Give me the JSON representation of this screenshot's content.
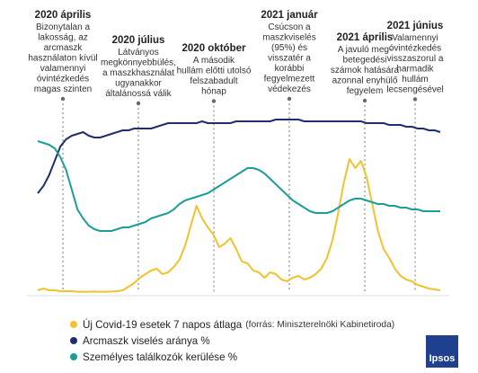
{
  "chart_data": {
    "type": "line",
    "x_range": [
      "2020-03",
      "2021-07"
    ],
    "series": [
      {
        "name": "Új Covid-19 esetek 7 napos átlaga",
        "color": "#f2c12e",
        "values": [
          0.02,
          0.03,
          0.02,
          0.02,
          0.015,
          0.015,
          0.015,
          0.012,
          0.012,
          0.012,
          0.013,
          0.012,
          0.012,
          0.013,
          0.015,
          0.02,
          0.04,
          0.06,
          0.09,
          0.11,
          0.13,
          0.14,
          0.11,
          0.12,
          0.15,
          0.19,
          0.27,
          0.38,
          0.49,
          0.42,
          0.37,
          0.33,
          0.26,
          0.28,
          0.31,
          0.25,
          0.18,
          0.17,
          0.13,
          0.12,
          0.09,
          0.12,
          0.11,
          0.08,
          0.07,
          0.09,
          0.1,
          0.08,
          0.09,
          0.11,
          0.14,
          0.2,
          0.3,
          0.45,
          0.62,
          0.75,
          0.7,
          0.74,
          0.65,
          0.5,
          0.35,
          0.25,
          0.2,
          0.14,
          0.1,
          0.08,
          0.07,
          0.05,
          0.04,
          0.03,
          0.025,
          0.02
        ]
      },
      {
        "name": "Arcmaszk viselés aránya %",
        "color": "#1f2f6e",
        "values": [
          0.56,
          0.6,
          0.66,
          0.74,
          0.82,
          0.86,
          0.88,
          0.89,
          0.9,
          0.88,
          0.87,
          0.87,
          0.88,
          0.89,
          0.9,
          0.91,
          0.91,
          0.92,
          0.92,
          0.92,
          0.92,
          0.93,
          0.94,
          0.95,
          0.95,
          0.95,
          0.95,
          0.95,
          0.95,
          0.96,
          0.95,
          0.95,
          0.95,
          0.95,
          0.95,
          0.96,
          0.96,
          0.96,
          0.96,
          0.96,
          0.96,
          0.96,
          0.97,
          0.97,
          0.97,
          0.97,
          0.97,
          0.96,
          0.96,
          0.96,
          0.96,
          0.96,
          0.96,
          0.96,
          0.96,
          0.96,
          0.96,
          0.96,
          0.95,
          0.95,
          0.95,
          0.95,
          0.94,
          0.94,
          0.94,
          0.93,
          0.93,
          0.92,
          0.92,
          0.91,
          0.91,
          0.9
        ]
      },
      {
        "name": "Személyes találkozók kerülése %",
        "color": "#1a9e96",
        "values": [
          0.85,
          0.84,
          0.83,
          0.81,
          0.76,
          0.69,
          0.58,
          0.47,
          0.42,
          0.38,
          0.36,
          0.35,
          0.35,
          0.35,
          0.36,
          0.37,
          0.37,
          0.38,
          0.39,
          0.4,
          0.42,
          0.43,
          0.44,
          0.45,
          0.47,
          0.5,
          0.52,
          0.53,
          0.54,
          0.55,
          0.56,
          0.58,
          0.6,
          0.62,
          0.64,
          0.66,
          0.68,
          0.7,
          0.7,
          0.69,
          0.67,
          0.64,
          0.61,
          0.58,
          0.55,
          0.52,
          0.5,
          0.48,
          0.46,
          0.45,
          0.45,
          0.45,
          0.46,
          0.48,
          0.5,
          0.52,
          0.53,
          0.53,
          0.52,
          0.51,
          0.5,
          0.5,
          0.49,
          0.49,
          0.48,
          0.48,
          0.47,
          0.47,
          0.46,
          0.46,
          0.46,
          0.46
        ]
      }
    ],
    "annotations": [
      {
        "date": "2020-04",
        "title": "2020 április",
        "lines": [
          "Bizonytalan a",
          "lakosság, az",
          "arcmaszk",
          "használaton kívül",
          "valamennyi",
          "óvintézkedés",
          "magas szinten"
        ]
      },
      {
        "date": "2020-07",
        "title": "2020 július",
        "lines": [
          "Látványos",
          "megkönnyebbülés,",
          "a maszkhasználat",
          "ugyanakkor",
          "általánossá válik"
        ]
      },
      {
        "date": "2020-10",
        "title": "2020 október",
        "lines": [
          "A második",
          "hullám előtti utolsó",
          "felszabadult",
          "hónap"
        ]
      },
      {
        "date": "2021-01",
        "title": "2021 január",
        "lines": [
          "Csúcson a",
          "maszkviselés",
          "(95%) és",
          "visszatér a",
          "korábbi",
          "fegyelmezett",
          "védekezés"
        ]
      },
      {
        "date": "2021-04",
        "title": "2021 április",
        "lines": [
          "A javuló meg-",
          "betegedési",
          "számok hatására",
          "azonnal enyhülő",
          "fegyelem"
        ]
      },
      {
        "date": "2021-06",
        "title": "2021 június",
        "lines": [
          "Valamennyi",
          "óvintézkedés",
          "visszaszorul a",
          "harmadik",
          "hullám",
          "lecsengésével"
        ]
      }
    ]
  },
  "legend": {
    "items": [
      {
        "label": "Új Covid-19 esetek 7 napos átlaga",
        "note": "(forrás: Miniszterelnöki Kabinetiroda)",
        "color": "#f2c12e"
      },
      {
        "label": "Arcmaszk viselés aránya %",
        "note": "",
        "color": "#1f2f6e"
      },
      {
        "label": "Személyes találkozók kerülése %",
        "note": "",
        "color": "#1a9e96"
      }
    ]
  },
  "logo": {
    "text": "Ipsos",
    "color": "#1f3f8f"
  }
}
